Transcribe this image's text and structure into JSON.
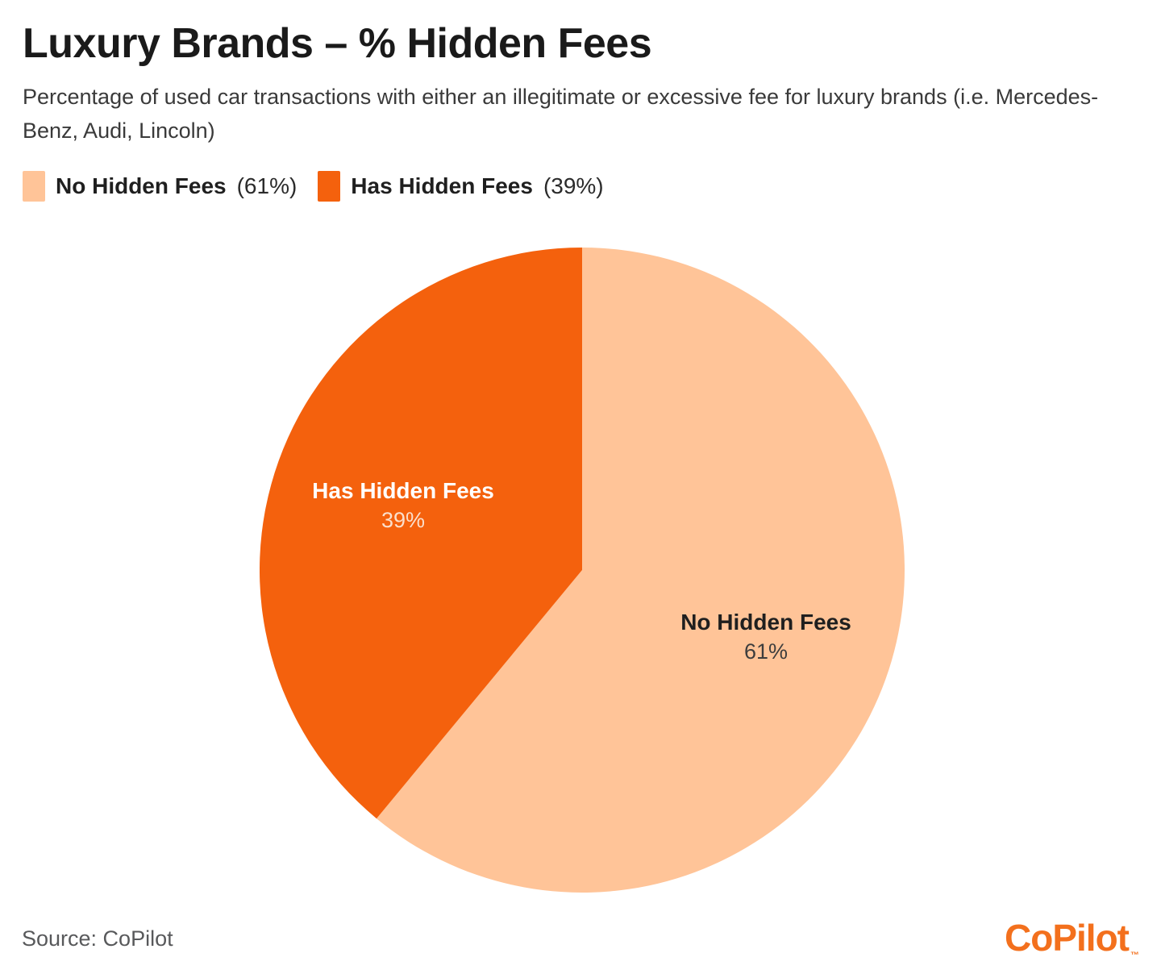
{
  "header": {
    "title": "Luxury Brands – % Hidden Fees",
    "subtitle": "Percentage of used car transactions with either an illegitimate or excessive fee for luxury brands (i.e. Mercedes-Benz, Audi, Lincoln)"
  },
  "legend": {
    "items": [
      {
        "label": "No Hidden Fees",
        "value": "(61%)",
        "color": "#FFC498"
      },
      {
        "label": "Has Hidden Fees",
        "value": "(39%)",
        "color": "#F4610D"
      }
    ]
  },
  "chart_data": {
    "type": "pie",
    "title": "Luxury Brands – % Hidden Fees",
    "categories": [
      "No Hidden Fees",
      "Has Hidden Fees"
    ],
    "values": [
      61,
      39
    ],
    "unit": "percent",
    "colors": [
      "#FFC498",
      "#F4610D"
    ],
    "start_angle_deg": 0,
    "direction": "clockwise",
    "legend_position": "top-left",
    "slice_labels": [
      {
        "name": "No Hidden Fees",
        "pct": "61%",
        "name_color": "#1f1f1f",
        "pct_color": "#3d3d3d"
      },
      {
        "name": "Has Hidden Fees",
        "pct": "39%",
        "name_color": "#ffffff",
        "pct_color": "#fbdfcc"
      }
    ]
  },
  "footer": {
    "source": "Source: CoPilot",
    "brand": {
      "text": "CoPilot",
      "tm": "™",
      "color": "#F3701D"
    }
  }
}
